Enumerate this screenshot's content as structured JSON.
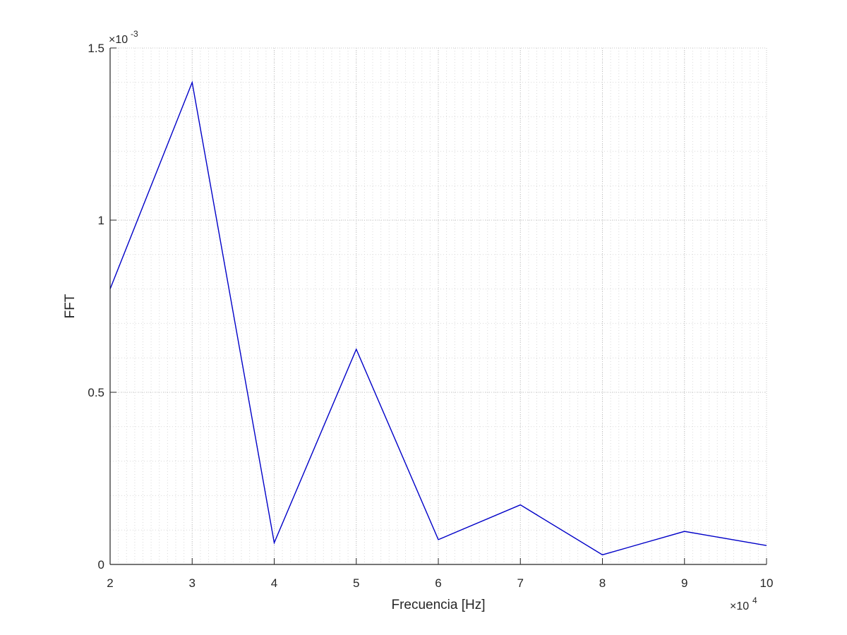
{
  "chart_data": {
    "type": "line",
    "xlabel": "Frecuencia [Hz]",
    "ylabel": "FFT",
    "x_multiplier": {
      "prefix": "×10",
      "exponent": "4"
    },
    "y_multiplier": {
      "prefix": "×10",
      "exponent": "-3"
    },
    "xlim": [
      20000,
      100000
    ],
    "ylim": [
      0,
      0.0015
    ],
    "x_scale": 10000,
    "y_scale": 0.001,
    "x_ticks": [
      20000,
      30000,
      40000,
      50000,
      60000,
      70000,
      80000,
      90000,
      100000
    ],
    "x_tick_labels": [
      "2",
      "3",
      "4",
      "5",
      "6",
      "7",
      "8",
      "9",
      "10"
    ],
    "y_ticks": [
      0,
      0.0005,
      0.001,
      0.0015
    ],
    "y_tick_labels": [
      "0",
      "0.5",
      "1",
      "1.5"
    ],
    "grid": true,
    "minor_grid": true,
    "series": [
      {
        "color": "#0000c8",
        "x": [
          20000,
          30000,
          40000,
          50000,
          60000,
          70000,
          80000,
          90000,
          100000
        ],
        "y": [
          0.0008,
          0.0014,
          6.3e-05,
          0.000625,
          7.2e-05,
          0.000173,
          2.8e-05,
          9.6e-05,
          5.5e-05
        ]
      }
    ]
  }
}
